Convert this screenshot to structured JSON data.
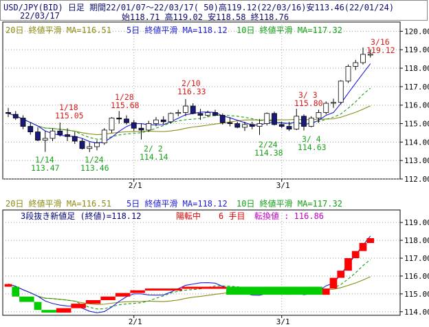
{
  "header": {
    "line1": "USD/JPY(BID) 日足 期間22/01/07〜22/03/17( 50)高119.12(22/03/16)安113.46(22/01/24)",
    "line2": "22/03/17",
    "ohlc": "始118.71 高119.02 安118.58 終118.76"
  },
  "ma_legend": {
    "ma20": "20日 終値平滑 MA=116.51",
    "ma5": "5日 終値平滑 MA=118.12",
    "ma10": "10日 終値平滑 MA=117.32"
  },
  "three_line_break": {
    "info_main": "3段抜き新値足 (終値)=118.12",
    "info_state": "陽転中",
    "info_count": "6 手目",
    "info_reversal": "転換値 : 116.86"
  },
  "colors": {
    "ma5": "#1a1adc",
    "ma10": "#10a010",
    "ma20": "#8a8a10",
    "candle_fill": "#1a1a7a",
    "candle_hollow": "#ffffff",
    "annotation_high": "#d81818",
    "annotation_low": "#18a018",
    "break_up": "#ff0000",
    "break_down": "#00cc00",
    "state": "#e00000",
    "reversal": "#c000c0",
    "info_text": "#00007a"
  },
  "chart_data": [
    {
      "type": "candlestick",
      "title": "USD/JPY(BID) 日足",
      "ylim": [
        112.0,
        120.5
      ],
      "y_ticks": [
        "112.00",
        "113.00",
        "114.00",
        "115.00",
        "116.00",
        "117.00",
        "118.00",
        "119.00",
        "120.00"
      ],
      "x_ticks": [
        "2/1",
        "3/1"
      ],
      "dates": [
        "1/7",
        "1/10",
        "1/11",
        "1/12",
        "1/13",
        "1/14",
        "1/17",
        "1/18",
        "1/19",
        "1/20",
        "1/21",
        "1/24",
        "1/25",
        "1/26",
        "1/27",
        "1/28",
        "1/31",
        "2/1",
        "2/2",
        "2/3",
        "2/4",
        "2/7",
        "2/8",
        "2/9",
        "2/10",
        "2/11",
        "2/14",
        "2/15",
        "2/16",
        "2/17",
        "2/18",
        "2/21",
        "2/22",
        "2/23",
        "2/24",
        "2/25",
        "2/28",
        "3/1",
        "3/2",
        "3/3",
        "3/4",
        "3/7",
        "3/8",
        "3/9",
        "3/10",
        "3/11",
        "3/14",
        "3/15",
        "3/16",
        "3/17"
      ],
      "ohlc": [
        [
          115.6,
          115.85,
          115.35,
          115.55
        ],
        [
          115.5,
          115.68,
          115.2,
          115.3
        ],
        [
          115.3,
          115.45,
          114.7,
          114.85
        ],
        [
          114.85,
          115.05,
          114.4,
          114.55
        ],
        [
          114.55,
          114.8,
          114.05,
          114.1
        ],
        [
          114.1,
          114.6,
          113.47,
          114.2
        ],
        [
          114.2,
          114.75,
          114.05,
          114.6
        ],
        [
          114.6,
          115.05,
          114.3,
          114.4
        ],
        [
          114.4,
          114.75,
          114.05,
          114.3
        ],
        [
          114.3,
          114.55,
          113.9,
          114.05
        ],
        [
          114.05,
          114.2,
          113.6,
          113.65
        ],
        [
          113.65,
          114.0,
          113.46,
          113.75
        ],
        [
          113.75,
          114.1,
          113.55,
          113.95
        ],
        [
          113.95,
          114.75,
          113.85,
          114.65
        ],
        [
          114.65,
          115.35,
          114.5,
          115.3
        ],
        [
          115.3,
          115.68,
          115.0,
          115.25
        ],
        [
          115.25,
          115.45,
          114.95,
          115.05
        ],
        [
          115.05,
          115.2,
          114.6,
          114.75
        ],
        [
          114.75,
          115.0,
          114.14,
          114.65
        ],
        [
          114.65,
          115.15,
          114.55,
          115.0
        ],
        [
          115.0,
          115.35,
          114.85,
          115.2
        ],
        [
          115.2,
          115.4,
          114.95,
          115.1
        ],
        [
          115.1,
          115.6,
          115.0,
          115.55
        ],
        [
          115.55,
          115.75,
          115.4,
          115.6
        ],
        [
          115.6,
          116.33,
          115.4,
          115.95
        ],
        [
          115.95,
          116.1,
          115.5,
          115.55
        ],
        [
          115.55,
          115.8,
          115.2,
          115.45
        ],
        [
          115.45,
          115.7,
          115.35,
          115.6
        ],
        [
          115.6,
          115.75,
          115.4,
          115.45
        ],
        [
          115.45,
          115.55,
          114.95,
          115.05
        ],
        [
          115.05,
          115.35,
          114.85,
          115.0
        ],
        [
          115.0,
          115.1,
          114.75,
          114.8
        ],
        [
          114.8,
          115.1,
          114.6,
          114.95
        ],
        [
          114.95,
          115.1,
          114.7,
          114.85
        ],
        [
          114.85,
          115.25,
          114.38,
          115.0
        ],
        [
          115.0,
          115.6,
          114.9,
          115.55
        ],
        [
          115.55,
          115.65,
          114.9,
          114.95
        ],
        [
          114.95,
          115.1,
          114.75,
          114.85
        ],
        [
          114.85,
          115.1,
          114.6,
          114.7
        ],
        [
          114.7,
          115.8,
          114.65,
          115.4
        ],
        [
          115.4,
          115.5,
          114.63,
          114.85
        ],
        [
          114.85,
          115.4,
          114.8,
          115.3
        ],
        [
          115.3,
          115.75,
          115.05,
          115.6
        ],
        [
          115.6,
          116.2,
          115.5,
          116.1
        ],
        [
          116.1,
          116.35,
          115.85,
          116.15
        ],
        [
          116.15,
          117.35,
          116.05,
          117.3
        ],
        [
          117.3,
          118.2,
          117.2,
          118.1
        ],
        [
          118.1,
          118.45,
          117.9,
          118.3
        ],
        [
          118.3,
          119.12,
          118.2,
          118.75
        ],
        [
          118.71,
          119.02,
          118.58,
          118.76
        ]
      ],
      "annotations": [
        {
          "label": "1/18",
          "value": "115.05",
          "kind": "high"
        },
        {
          "label": "1/14",
          "value": "113.47",
          "kind": "low"
        },
        {
          "label": "1/24",
          "value": "113.46",
          "kind": "low"
        },
        {
          "label": "1/28",
          "value": "115.68",
          "kind": "high"
        },
        {
          "label": "2/ 2",
          "value": "114.14",
          "kind": "low"
        },
        {
          "label": "2/10",
          "value": "116.33",
          "kind": "high"
        },
        {
          "label": "2/24",
          "value": "114.38",
          "kind": "low"
        },
        {
          "label": "3/ 3",
          "value": "115.80",
          "kind": "high"
        },
        {
          "label": "3/ 4",
          "value": "114.63",
          "kind": "low"
        },
        {
          "label": "3/16",
          "value": "119.12",
          "kind": "high"
        }
      ],
      "ma": {
        "ma5": 118.12,
        "ma10": 117.32,
        "ma20": 116.51
      }
    },
    {
      "type": "three_line_break",
      "title": "3段抜き新値足 (終値)",
      "ylim": [
        113.8,
        119.7
      ],
      "y_ticks": [
        "114.00",
        "115.00",
        "116.00",
        "117.00",
        "118.00",
        "119.00"
      ],
      "x_ticks": [
        "2/1",
        "3/1"
      ],
      "bricks": [
        {
          "dir": "up",
          "low": 115.4,
          "high": 115.55
        },
        {
          "dir": "down",
          "low": 114.85,
          "high": 115.4
        },
        {
          "dir": "down",
          "low": 114.55,
          "high": 114.85
        },
        {
          "dir": "down",
          "low": 114.1,
          "high": 114.55
        },
        {
          "dir": "down",
          "low": 113.95,
          "high": 114.1
        },
        {
          "dir": "up",
          "low": 113.95,
          "high": 114.2
        },
        {
          "dir": "up",
          "low": 114.2,
          "high": 114.45
        },
        {
          "dir": "up",
          "low": 114.45,
          "high": 114.65
        },
        {
          "dir": "up",
          "low": 114.65,
          "high": 114.85
        },
        {
          "dir": "up",
          "low": 114.85,
          "high": 115.05
        },
        {
          "dir": "up",
          "low": 115.05,
          "high": 115.2
        },
        {
          "dir": "up",
          "low": 115.2,
          "high": 115.3
        },
        {
          "dir": "up",
          "low": 115.3,
          "high": 115.4
        },
        {
          "dir": "down",
          "low": 114.95,
          "high": 115.4
        },
        {
          "dir": "up",
          "low": 114.95,
          "high": 115.3
        },
        {
          "dir": "up",
          "low": 115.3,
          "high": 115.9
        },
        {
          "dir": "up",
          "low": 115.9,
          "high": 116.3
        },
        {
          "dir": "up",
          "low": 116.3,
          "high": 117.0
        },
        {
          "dir": "up",
          "low": 117.0,
          "high": 117.4
        },
        {
          "dir": "up",
          "low": 117.4,
          "high": 117.85
        },
        {
          "dir": "up",
          "low": 117.85,
          "high": 118.12
        }
      ],
      "slots": [
        0,
        1,
        2,
        2,
        3,
        4,
        4,
        5,
        5,
        6,
        6,
        7,
        7,
        8,
        8,
        9,
        9,
        10,
        10,
        11,
        11,
        11,
        11,
        11,
        12,
        12,
        12,
        12,
        12,
        12,
        13,
        13,
        13,
        13,
        13,
        13,
        13,
        13,
        13,
        13,
        13,
        13,
        13,
        14,
        15,
        16,
        17,
        18,
        19,
        20
      ]
    }
  ]
}
